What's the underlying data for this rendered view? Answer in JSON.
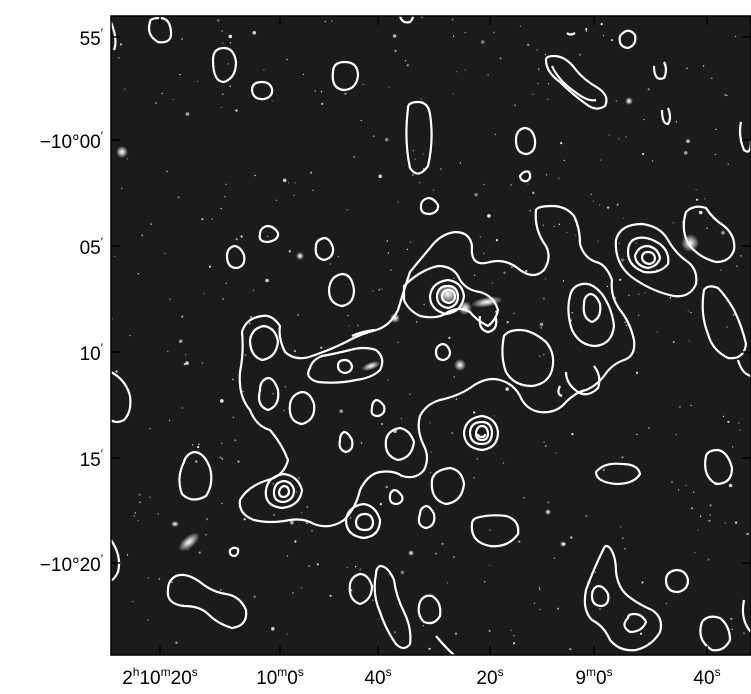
{
  "figure": {
    "y_axis": {
      "ticks": [
        {
          "base": "55",
          "sup": "′"
        },
        {
          "base": "−10°00",
          "sup": "′"
        },
        {
          "base": "05",
          "sup": "′"
        },
        {
          "base": "10",
          "sup": "′"
        },
        {
          "base": "15",
          "sup": "′"
        },
        {
          "base": "−10°20",
          "sup": "′"
        }
      ]
    },
    "x_axis": {
      "ticks": [
        {
          "parts": [
            "2",
            "h",
            "10",
            "m",
            "20",
            "s"
          ]
        },
        {
          "parts": [
            "10",
            "m",
            "0",
            "s"
          ]
        },
        {
          "parts": [
            "40",
            "s"
          ]
        },
        {
          "parts": [
            "20",
            "s"
          ]
        },
        {
          "parts": [
            "9",
            "m",
            "0",
            "s"
          ]
        },
        {
          "parts": [
            "40",
            "s"
          ]
        }
      ]
    },
    "colors": {
      "sky": "#1b1b1b",
      "contour": "#ffffff",
      "axis": "#000000",
      "star": "#ffffff"
    }
  }
}
